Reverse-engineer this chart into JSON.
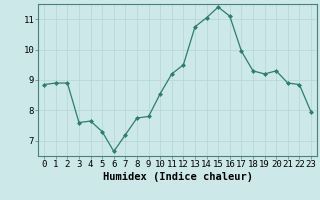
{
  "x": [
    0,
    1,
    2,
    3,
    4,
    5,
    6,
    7,
    8,
    9,
    10,
    11,
    12,
    13,
    14,
    15,
    16,
    17,
    18,
    19,
    20,
    21,
    22,
    23
  ],
  "y": [
    8.85,
    8.9,
    8.9,
    7.6,
    7.65,
    7.3,
    6.65,
    7.2,
    7.75,
    7.8,
    8.55,
    9.2,
    9.5,
    10.75,
    11.05,
    11.4,
    11.1,
    9.95,
    9.3,
    9.2,
    9.3,
    8.9,
    8.85,
    7.95
  ],
  "line_color": "#2e7d6e",
  "marker_color": "#2e7d6e",
  "bg_color": "#cce8e8",
  "grid_color": "#b8d8d8",
  "xlabel": "Humidex (Indice chaleur)",
  "xlim": [
    -0.5,
    23.5
  ],
  "ylim": [
    6.5,
    11.5
  ],
  "yticks": [
    7,
    8,
    9,
    10,
    11
  ],
  "xlabel_fontsize": 7.5,
  "tick_fontsize": 6.5
}
